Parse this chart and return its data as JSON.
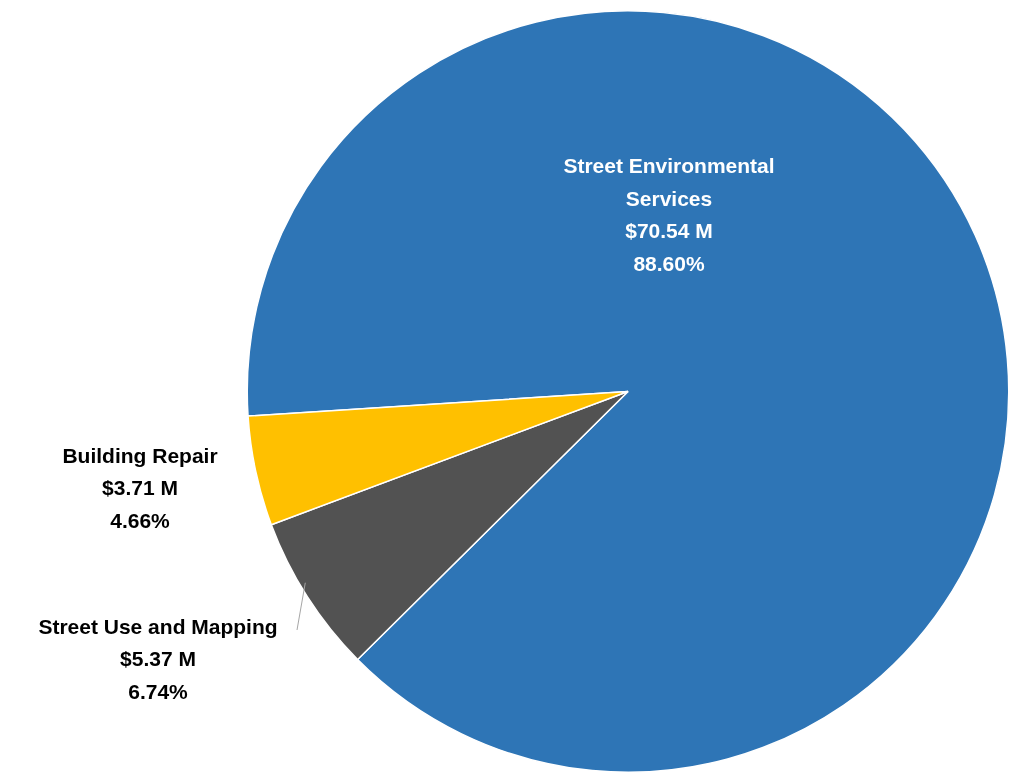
{
  "chart_data": {
    "type": "pie",
    "categories": [
      "Street Environmental Services",
      "Street Use and Mapping",
      "Building Repair"
    ],
    "values": [
      70.54,
      5.37,
      3.71
    ],
    "value_labels": [
      "$70.54 M\n88.60%",
      "$5.37 M\n6.74%",
      "$3.71 M\n4.66%"
    ],
    "colors": [
      "#2e75b6",
      "#525252",
      "#ffc000"
    ],
    "legend": false
  }
}
